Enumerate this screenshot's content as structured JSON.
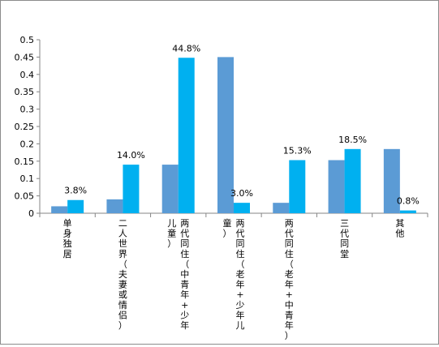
{
  "chart_data": {
    "type": "bar",
    "categories": [
      "单身独居",
      "二人世界（夫妻或情侣）",
      "两代同住（中青年+少年儿童）",
      "两代同住（老年+少年儿童）",
      "两代同住（老年+中青年）",
      "三代同堂",
      "其他"
    ],
    "category_label_columns": [
      [
        "单身独居"
      ],
      [
        "二人世界（夫妻或情侣）"
      ],
      [
        "两代同住（中青年+少年",
        "儿童）"
      ],
      [
        "两代同住（老年+少年儿",
        "童）"
      ],
      [
        "两代同住（老年+中青年）"
      ],
      [
        "三代同堂"
      ],
      [
        "其他"
      ]
    ],
    "series": [
      {
        "values": [
          0.02,
          0.04,
          0.14,
          0.45,
          0.03,
          0.153,
          0.185
        ],
        "color": "#5b9bd5",
        "data_labels": []
      },
      {
        "values": [
          0.038,
          0.14,
          0.448,
          0.03,
          0.153,
          0.185,
          0.008
        ],
        "color": "#00b0f0",
        "data_labels": [
          "3.8%",
          "14.0%",
          "44.8%",
          "3.0%",
          "15.3%",
          "18.5%",
          "0.8%"
        ]
      }
    ],
    "y_ticks": [
      "0",
      "0.05",
      "0.1",
      "0.15",
      "0.2",
      "0.25",
      "0.3",
      "0.35",
      "0.4",
      "0.45",
      "0.5"
    ],
    "ylim": [
      0,
      0.5
    ],
    "title": "",
    "xlabel": "",
    "ylabel": "",
    "grid": false,
    "legend": "none"
  }
}
